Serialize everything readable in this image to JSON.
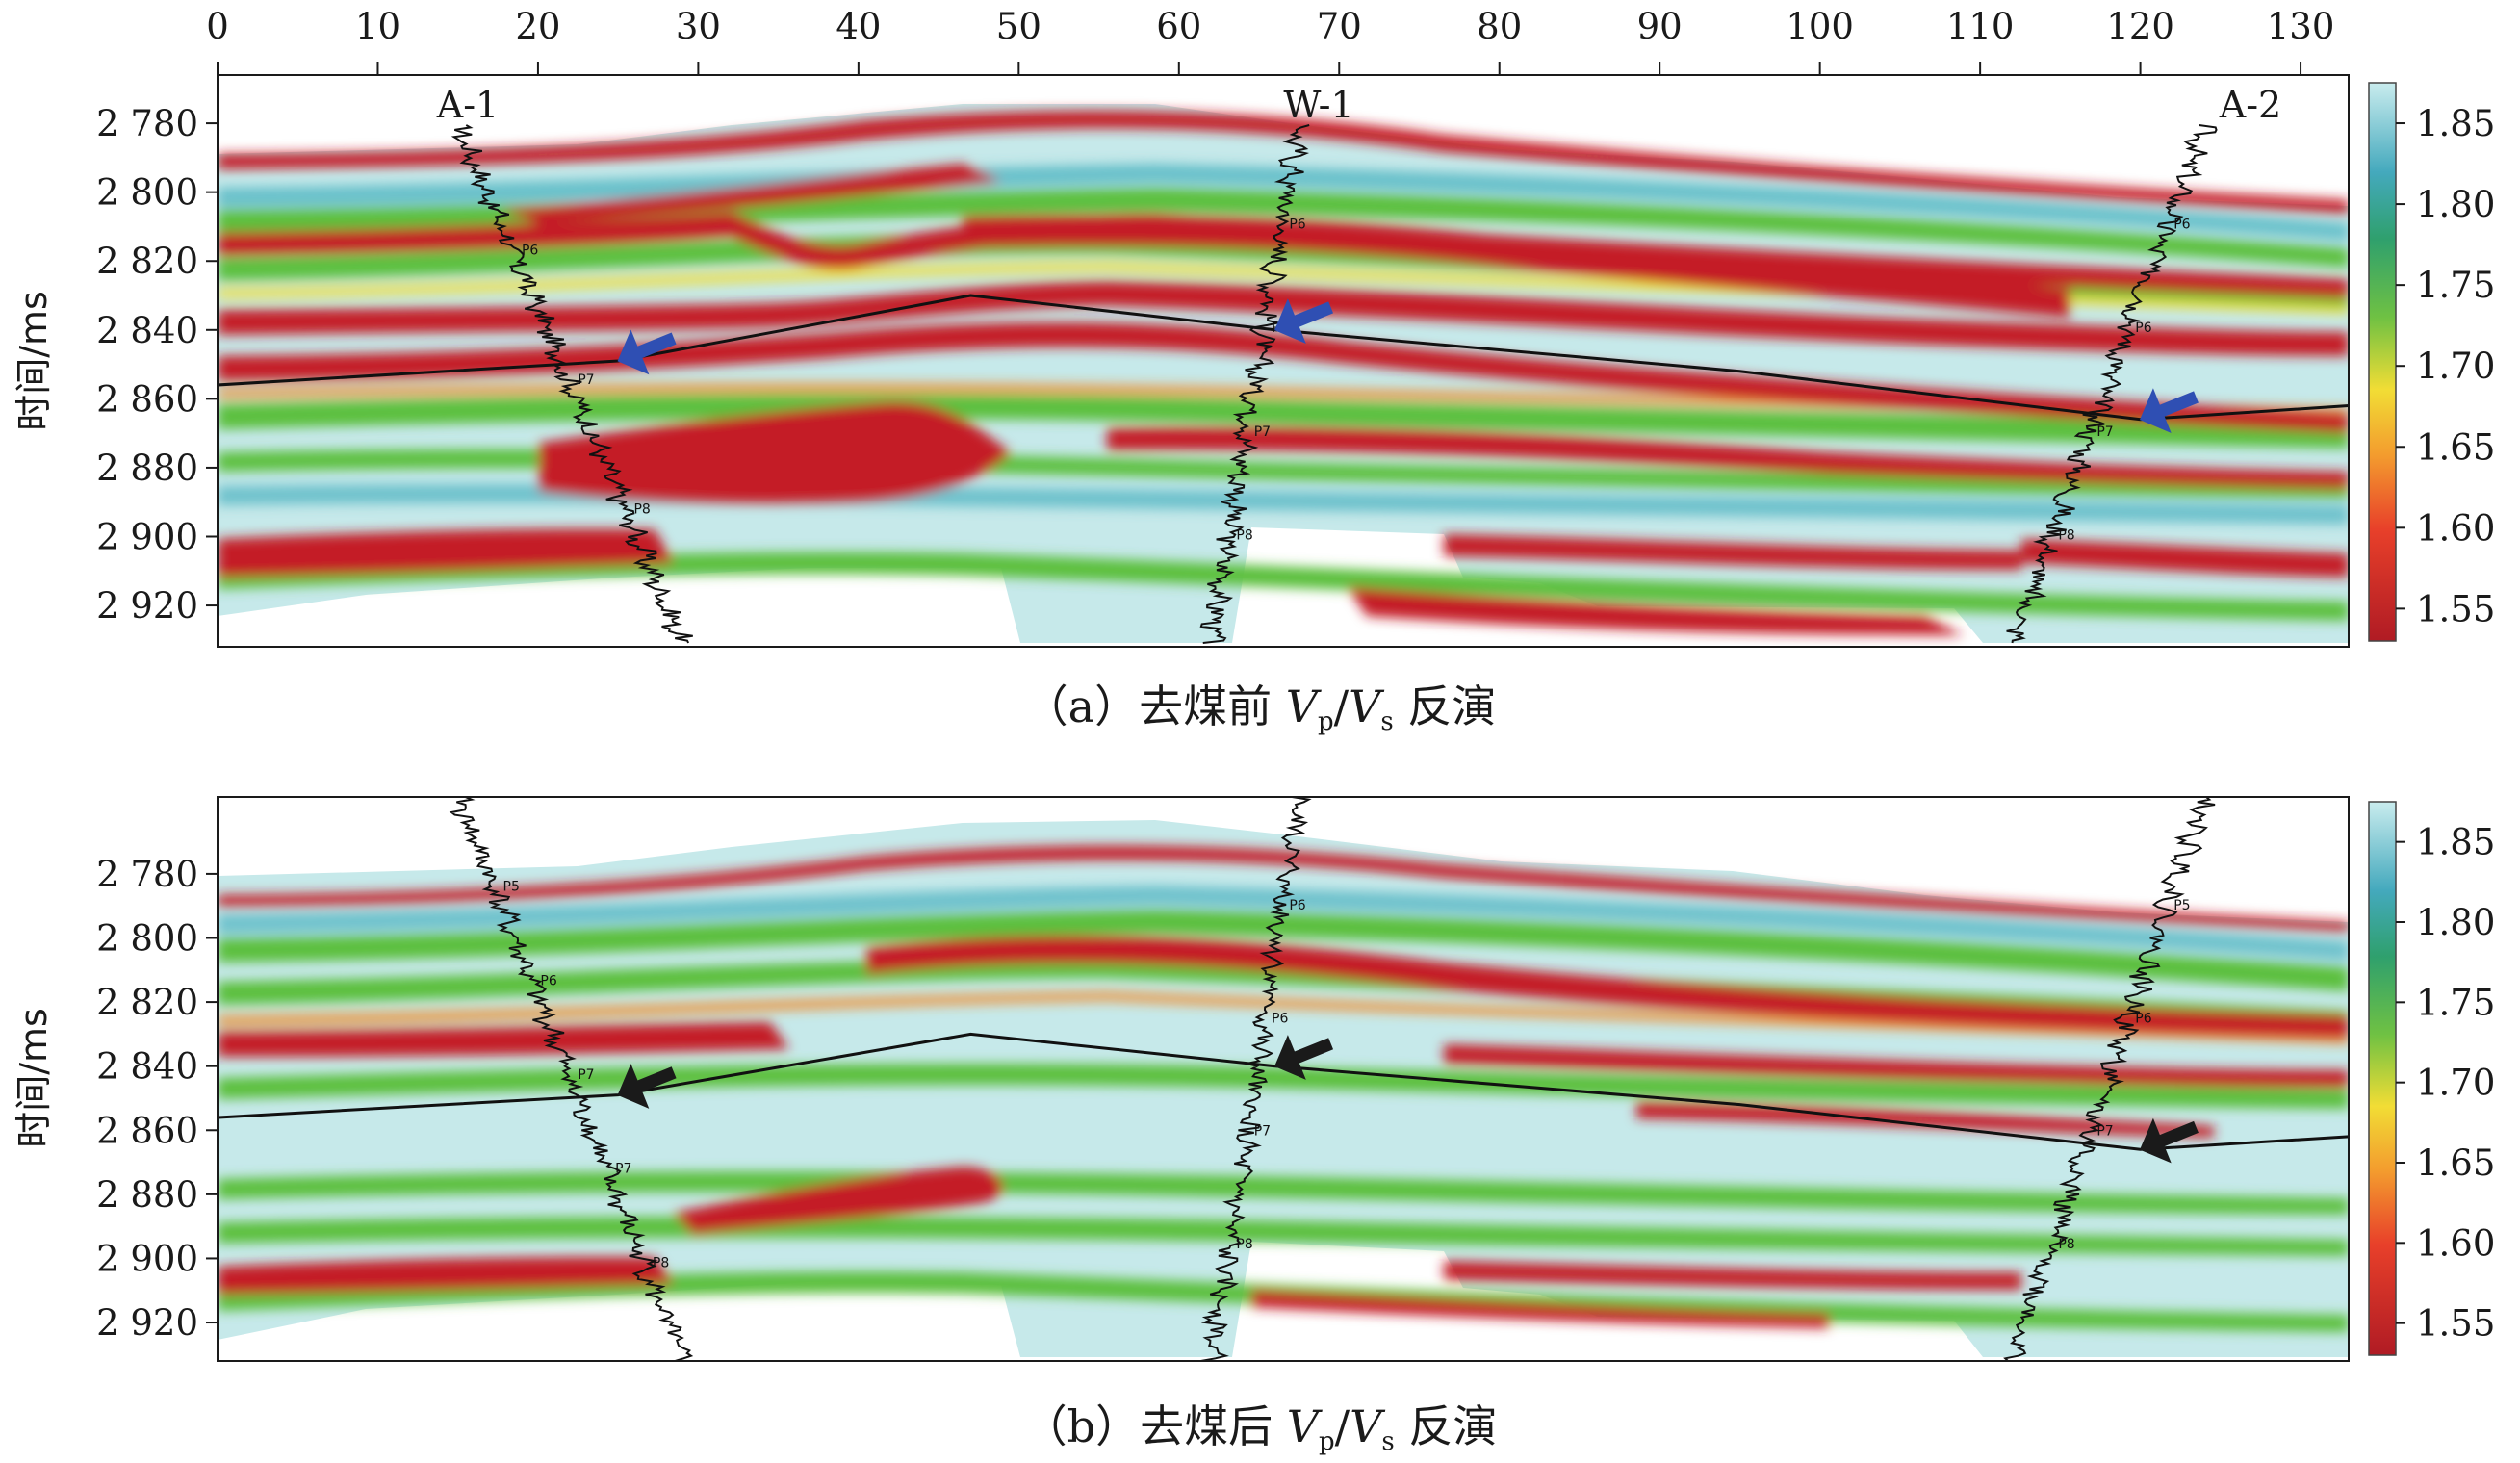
{
  "chart_data": [
    {
      "type": "heatmap",
      "caption": {
        "prefix": "（a）去煤前 ",
        "v1": "V",
        "s1": "p",
        "slash": "/",
        "v2": "V",
        "s2": "s",
        "suffix": " 反演"
      },
      "ylabel": "时间/ms",
      "x_ticks": [
        "0",
        "10",
        "20",
        "30",
        "40",
        "50",
        "60",
        "70",
        "80",
        "90",
        "100",
        "110",
        "120",
        "130"
      ],
      "x_values": [
        0,
        10,
        20,
        30,
        40,
        50,
        60,
        70,
        80,
        90,
        100,
        110,
        120,
        130
      ],
      "xlim": [
        0,
        133
      ],
      "y_ticks": [
        "2 780",
        "2 800",
        "2 820",
        "2 840",
        "2 860",
        "2 880",
        "2 900",
        "2 920"
      ],
      "y_values": [
        2780,
        2800,
        2820,
        2840,
        2860,
        2880,
        2900,
        2920
      ],
      "ylim": [
        2766,
        2932
      ],
      "colorbar": {
        "ticks": [
          "1.85",
          "1.80",
          "1.75",
          "1.70",
          "1.65",
          "1.60",
          "1.55"
        ],
        "values": [
          1.85,
          1.8,
          1.75,
          1.7,
          1.65,
          1.6,
          1.55
        ],
        "range": [
          1.53,
          1.875
        ]
      },
      "wells": [
        {
          "name": "A-1",
          "x": 15,
          "markers": [
            "P6",
            "P7",
            "P8"
          ],
          "arrow_color": "#2f4fb3"
        },
        {
          "name": "W-1",
          "x": 66,
          "markers": [
            "P6",
            "P6",
            "P7",
            "P8"
          ],
          "arrow_color": "#2f4fb3"
        },
        {
          "name": "A-2",
          "x": 121,
          "markers": [
            "P6",
            "P6",
            "P7",
            "P8"
          ],
          "arrow_color": "#2f4fb3"
        }
      ],
      "horizon": {
        "x": [
          0,
          25,
          47,
          66,
          95,
          120,
          133
        ],
        "y": [
          2856,
          2849,
          2830,
          2840,
          2852,
          2866,
          2862
        ]
      }
    },
    {
      "type": "heatmap",
      "caption": {
        "prefix": "（b）去煤后 ",
        "v1": "V",
        "s1": "p",
        "slash": "/",
        "v2": "V",
        "s2": "s",
        "suffix": " 反演"
      },
      "ylabel": "时间/ms",
      "y_ticks": [
        "2 780",
        "2 800",
        "2 820",
        "2 840",
        "2 860",
        "2 880",
        "2 900",
        "2 920"
      ],
      "y_values": [
        2780,
        2800,
        2820,
        2840,
        2860,
        2880,
        2900,
        2920
      ],
      "ylim": [
        2756,
        2932
      ],
      "colorbar": {
        "ticks": [
          "1.85",
          "1.80",
          "1.75",
          "1.70",
          "1.65",
          "1.60",
          "1.55"
        ],
        "values": [
          1.85,
          1.8,
          1.75,
          1.7,
          1.65,
          1.6,
          1.55
        ],
        "range": [
          1.53,
          1.875
        ]
      },
      "wells": [
        {
          "name": "",
          "x": 15,
          "markers": [
            "P5",
            "P6",
            "P7",
            "P7",
            "P8"
          ],
          "arrow_color": "#1a1a1a"
        },
        {
          "name": "",
          "x": 66,
          "markers": [
            "P6",
            "P6",
            "P7",
            "P8"
          ],
          "arrow_color": "#1a1a1a"
        },
        {
          "name": "",
          "x": 121,
          "markers": [
            "P5",
            "P6",
            "P7",
            "P8"
          ],
          "arrow_color": "#1a1a1a"
        }
      ],
      "horizon": {
        "x": [
          0,
          25,
          47,
          66,
          95,
          120,
          133
        ],
        "y": [
          2856,
          2849,
          2830,
          2840,
          2852,
          2866,
          2862
        ]
      }
    }
  ],
  "colors": {
    "low": "#c41e26",
    "orange": "#f08a2c",
    "yellow": "#f2dd35",
    "green": "#5bbf3e",
    "teal": "#55b7c3",
    "pale": "#c5e9ea",
    "arrow_before": "#2f4fb3",
    "arrow_after": "#1a1a1a"
  }
}
